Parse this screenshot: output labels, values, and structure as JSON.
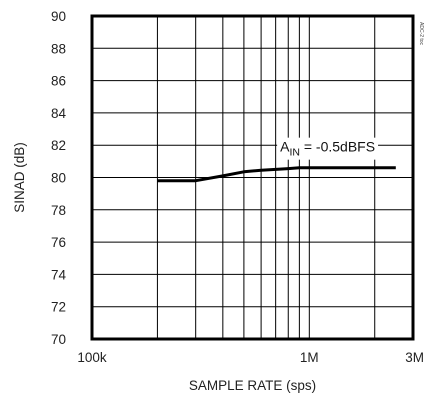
{
  "chart_data": {
    "type": "line",
    "title": "",
    "xlabel": "SAMPLE RATE (sps)",
    "ylabel": "SINAD (dB)",
    "x_scale": "log",
    "xlim": [
      100000,
      3000000
    ],
    "ylim": [
      70,
      90
    ],
    "x_ticks": [
      100000,
      1000000,
      3000000
    ],
    "x_tick_labels": [
      "100k",
      "1M",
      "3M"
    ],
    "y_ticks": [
      70,
      72,
      74,
      76,
      78,
      80,
      82,
      84,
      86,
      88,
      90
    ],
    "y_tick_labels": [
      "70",
      "72",
      "74",
      "76",
      "78",
      "80",
      "82",
      "84",
      "86",
      "88",
      "90"
    ],
    "grid": true,
    "x_gridlines": [
      200000,
      300000,
      400000,
      500000,
      600000,
      700000,
      800000,
      900000,
      1000000,
      2000000
    ],
    "series": [
      {
        "name": "",
        "x": [
          200000,
          300000,
          400000,
          500000,
          600000,
          700000,
          800000,
          900000,
          1000000,
          1500000,
          2000000,
          2500000
        ],
        "y": [
          79.8,
          79.8,
          80.1,
          80.35,
          80.45,
          80.5,
          80.55,
          80.6,
          80.6,
          80.6,
          80.6,
          80.6
        ]
      }
    ],
    "annotation": {
      "base": "A",
      "sub": "IN",
      "rest": " = -0.5dBFS",
      "x": 1500000,
      "y": 81.6
    },
    "figure_ref": "ADC-2 toc"
  }
}
